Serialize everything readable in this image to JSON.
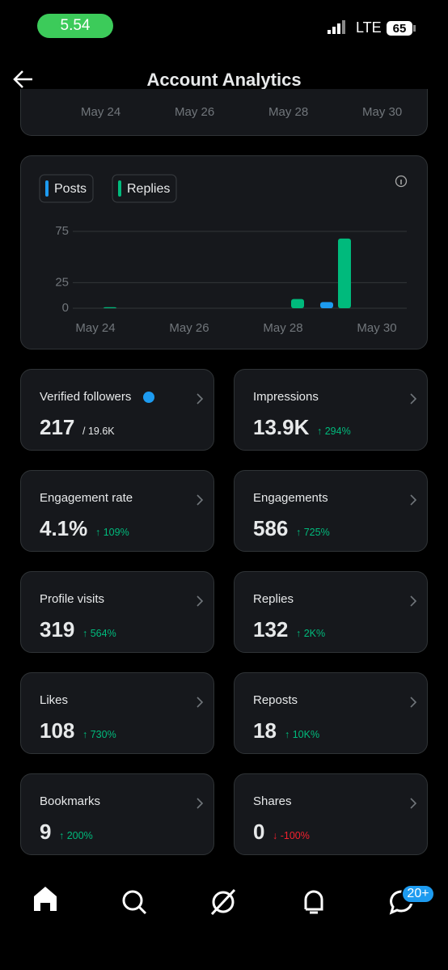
{
  "status_bar": {
    "time": "5.54",
    "network": "LTE",
    "battery": "65"
  },
  "header": {
    "title": "Account Analytics"
  },
  "top_chart": {
    "categories": [
      "May 24",
      "May 26",
      "May 28",
      "May 30"
    ]
  },
  "chart_data": {
    "type": "bar",
    "categories": [
      "May 24",
      null,
      "May 26",
      null,
      "May 28",
      null,
      "May 30"
    ],
    "series": [
      {
        "name": "Posts",
        "color": "#1d9bf0",
        "values": [
          0,
          0,
          0,
          0,
          0,
          6,
          0
        ]
      },
      {
        "name": "Replies",
        "color": "#00ba7c",
        "values": [
          1,
          0,
          0,
          0,
          9,
          68,
          0
        ]
      }
    ],
    "ylim": [
      0,
      75
    ],
    "yticks": [
      0,
      25,
      75
    ],
    "grid": true
  },
  "cards": [
    {
      "label": "Verified followers",
      "value": "217",
      "total": "/ 19.6K"
    },
    {
      "label": "Impressions",
      "value": "13.9K",
      "change": "↑ 294%",
      "trend": "up"
    },
    {
      "label": "Engagement rate",
      "value": "4.1%",
      "change": "↑ 109%",
      "trend": "up"
    },
    {
      "label": "Engagements",
      "value": "586",
      "change": "↑ 725%",
      "trend": "up"
    },
    {
      "label": "Profile visits",
      "value": "319",
      "change": "↑ 564%",
      "trend": "up"
    },
    {
      "label": "Replies",
      "value": "132",
      "change": "↑ 2K%",
      "trend": "up"
    },
    {
      "label": "Likes",
      "value": "108",
      "change": "↑ 730%",
      "trend": "up"
    },
    {
      "label": "Reposts",
      "value": "18",
      "change": "↑ 10K%",
      "trend": "up"
    },
    {
      "label": "Bookmarks",
      "value": "9",
      "change": "↑ 200%",
      "trend": "up"
    },
    {
      "label": "Shares",
      "value": "0",
      "change": "↓ -100%",
      "trend": "down"
    }
  ],
  "nav": {
    "badge": "20+"
  }
}
